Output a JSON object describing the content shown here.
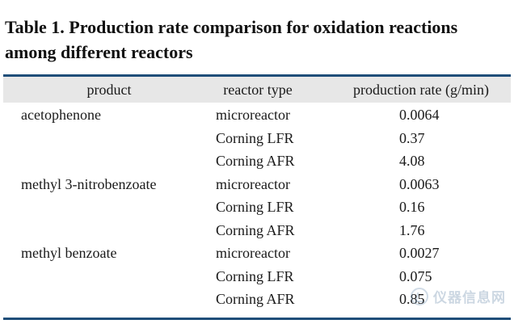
{
  "caption": {
    "label": "Table 1.",
    "text": "Production rate comparison for oxidation reactions among different reactors"
  },
  "table": {
    "headers": [
      "product",
      "reactor type",
      "production rate (g/min)"
    ],
    "rows": [
      {
        "product": "acetophenone",
        "reactor": "microreactor",
        "rate": "0.0064"
      },
      {
        "product": "",
        "reactor": "Corning LFR",
        "rate": "0.37"
      },
      {
        "product": "",
        "reactor": "Corning AFR",
        "rate": "4.08"
      },
      {
        "product": "methyl 3-nitrobenzoate",
        "reactor": "microreactor",
        "rate": "0.0063"
      },
      {
        "product": "",
        "reactor": "Corning LFR",
        "rate": "0.16"
      },
      {
        "product": "",
        "reactor": "Corning AFR",
        "rate": "1.76"
      },
      {
        "product": "methyl benzoate",
        "reactor": "microreactor",
        "rate": "0.0027"
      },
      {
        "product": "",
        "reactor": "Corning LFR",
        "rate": "0.075"
      },
      {
        "product": "",
        "reactor": "Corning AFR",
        "rate": "0.85"
      }
    ]
  },
  "watermark": {
    "icon": "instrument-logo-icon",
    "text": "仪器信息网"
  },
  "colors": {
    "rule": "#1f4e79",
    "header_band": "#e7e7e7"
  }
}
